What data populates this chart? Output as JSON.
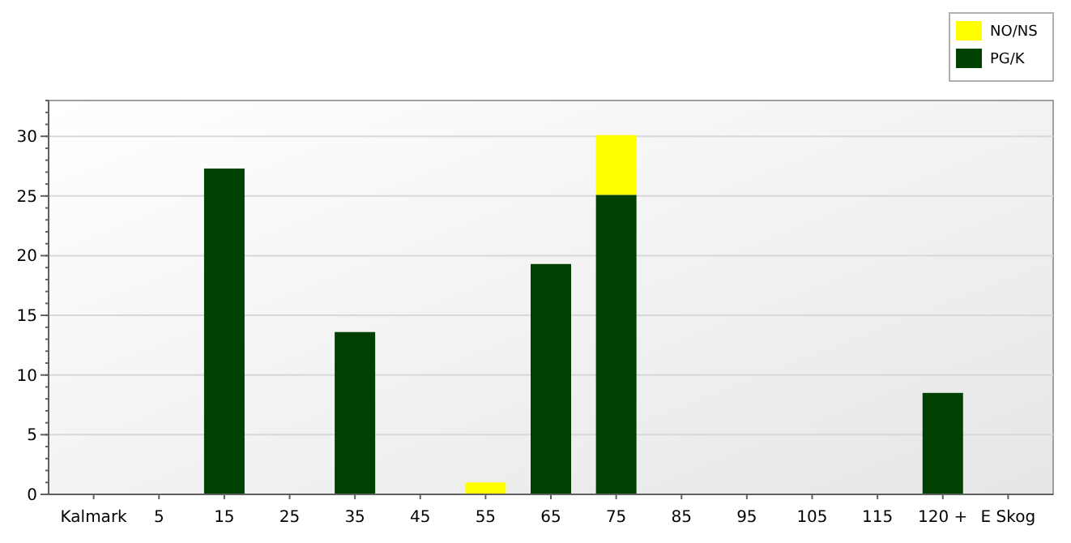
{
  "chart_data": {
    "type": "bar",
    "stacked": true,
    "categories": [
      "Kalmark",
      "5",
      "15",
      "25",
      "35",
      "45",
      "55",
      "65",
      "75",
      "85",
      "95",
      "105",
      "115",
      "120 +",
      "E Skog"
    ],
    "series": [
      {
        "name": "PG/K",
        "color": "#004000",
        "values": [
          0,
          0,
          27.3,
          0,
          13.6,
          0,
          0,
          19.3,
          25.1,
          0,
          0,
          0,
          0,
          8.5,
          0
        ]
      },
      {
        "name": "NO/NS",
        "color": "#ffff00",
        "values": [
          0,
          0,
          0,
          0,
          0,
          0,
          1,
          0,
          5,
          0,
          0,
          0,
          0,
          0,
          0
        ]
      }
    ],
    "ylim": [
      0,
      33
    ],
    "yticks": [
      0,
      5,
      10,
      15,
      20,
      25,
      30
    ],
    "grid": "y",
    "legend": "top right"
  }
}
